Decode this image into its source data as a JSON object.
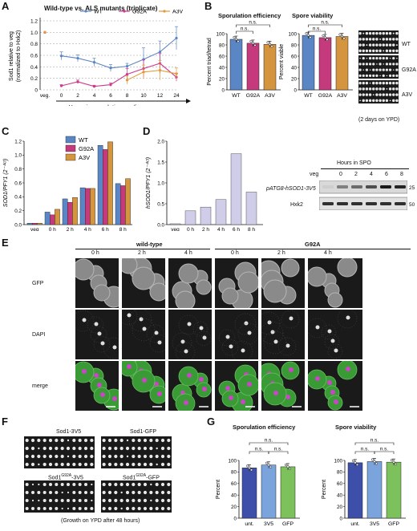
{
  "panelA": {
    "letter": "A",
    "title": "Wild-type vs. ALS mutants (triplicate)",
    "ylabel_line1": "Sod1 relative to veg",
    "ylabel_line2": "(normalized to Hxk2)",
    "xlabel": "Hours in sporulation media",
    "xticks": [
      "veg.",
      "0",
      "2",
      "4",
      "6",
      "8",
      "10",
      "12",
      "24"
    ],
    "yticks": [
      "0",
      "0.2",
      "0.4",
      "0.6",
      "0.8",
      "1.0",
      "1.2"
    ],
    "chart_data": {
      "type": "line",
      "x": [
        "veg.",
        "0",
        "2",
        "4",
        "6",
        "8",
        "10",
        "12",
        "24"
      ],
      "ylim": [
        0,
        1.2
      ],
      "series": [
        {
          "name": "WT",
          "color": "#5b86c5",
          "values": [
            1.0,
            0.59,
            0.55,
            0.48,
            0.38,
            0.41,
            0.53,
            0.66,
            0.9
          ],
          "err": [
            0,
            0.07,
            0.06,
            0.07,
            0.06,
            0.05,
            0.2,
            0.19,
            0.2
          ]
        },
        {
          "name": "G92A",
          "color": "#d0378c",
          "values": [
            1.0,
            0.07,
            0.14,
            0.06,
            0.09,
            0.27,
            0.37,
            0.46,
            0.22
          ],
          "err": [
            0,
            0.02,
            0.03,
            0.02,
            0.03,
            0.1,
            0.15,
            0.17,
            0.07
          ]
        },
        {
          "name": "A3V",
          "color": "#e39a36",
          "values": [
            1.0,
            null,
            null,
            null,
            null,
            0.17,
            0.31,
            0.34,
            0.28
          ],
          "err": [
            0,
            0,
            0,
            0,
            0,
            0.07,
            0.12,
            0.17,
            0.1
          ]
        }
      ]
    }
  },
  "panelB": {
    "letter": "B",
    "spor_title": "Sporulation efficiency",
    "spor_ylabel": "Percent triad/tetrad",
    "via_title": "Spore viability",
    "via_ylabel": "Percent viable",
    "ns": "n.s.",
    "yticks": [
      "0",
      "20",
      "40",
      "60",
      "80",
      "100"
    ],
    "chart_data": [
      {
        "type": "bar",
        "title": "Sporulation efficiency",
        "ylabel": "Percent triad/tetrad",
        "categories": [
          "WT",
          "G92A",
          "A3V"
        ],
        "values": [
          90,
          83,
          81
        ],
        "ylim": [
          0,
          100
        ]
      },
      {
        "type": "bar",
        "title": "Spore viability",
        "ylabel": "Percent viable",
        "categories": [
          "WT",
          "G92A",
          "A3V"
        ],
        "values": [
          97,
          93,
          95
        ],
        "ylim": [
          0,
          100
        ]
      }
    ],
    "bar_colors": [
      "#5b86c5",
      "#c43a7c",
      "#d4953e"
    ],
    "plate_labels": [
      "WT",
      "G92A",
      "A3V"
    ],
    "plate_caption": "(2 days on YPD)"
  },
  "panelC": {
    "letter": "C",
    "ylabel": "SOD1/PFY1 (2⁻ᐞᶜᵗ)",
    "xticks": [
      "veg",
      "0 h",
      "2 h",
      "4 h",
      "6 h",
      "8 h"
    ],
    "yticks": [
      "0.0",
      "0.2",
      "0.4",
      "0.6",
      "0.8",
      "1.0",
      "1.2"
    ],
    "legend": [
      "WT",
      "G92A",
      "A3V"
    ],
    "colors": [
      "#5b86c5",
      "#c43a7c",
      "#d4953e"
    ],
    "chart_data": {
      "type": "bar",
      "categories": [
        "veg",
        "0 h",
        "2 h",
        "4 h",
        "6 h",
        "8 h"
      ],
      "ylim": [
        0,
        1.2
      ],
      "series": [
        {
          "name": "WT",
          "values": [
            0.02,
            0.18,
            0.37,
            0.53,
            1.14,
            0.59
          ]
        },
        {
          "name": "G92A",
          "values": [
            0.02,
            0.14,
            0.32,
            0.52,
            1.08,
            0.56
          ]
        },
        {
          "name": "A3V",
          "values": [
            0.02,
            0.22,
            0.39,
            0.52,
            1.19,
            0.66
          ]
        }
      ]
    }
  },
  "panelD": {
    "letter": "D",
    "ylabel": "hSOD1/PFY1 (2⁻ᐞᶜᵗ)",
    "xticks": [
      "veg",
      "0 h",
      "2 h",
      "4 h",
      "6 h",
      "8 h"
    ],
    "yticks": [
      "0.0",
      "0.5",
      "1.0",
      "1.5",
      "2.0"
    ],
    "color": "#cfcde8",
    "chart_data": {
      "type": "bar",
      "categories": [
        "veg",
        "0 h",
        "2 h",
        "4 h",
        "6 h",
        "8 h"
      ],
      "values": [
        0.02,
        0.33,
        0.42,
        0.6,
        1.7,
        0.78
      ],
      "ylim": [
        0,
        2.0
      ]
    },
    "blot_header": "Hours in SPO",
    "blot_cols": [
      "veg",
      "0",
      "2",
      "4",
      "6",
      "8"
    ],
    "blot_rows": [
      "pATG8-hSOD1-3V5",
      "Hxk2"
    ],
    "blot_markers": [
      "25",
      "50"
    ]
  },
  "panelE": {
    "letter": "E",
    "groups": [
      "wild-type",
      "G92A"
    ],
    "times": [
      "0 h",
      "2 h",
      "4 h",
      "0 h",
      "2 h",
      "4 h"
    ],
    "rows": [
      "GFP",
      "DAPI",
      "merge"
    ]
  },
  "panelF": {
    "letter": "F",
    "strains": [
      "Sod1-3V5",
      "Sod1-GFP",
      "Sod1",
      "Sod1"
    ],
    "strain_sup": [
      "",
      "",
      "G92A",
      "G92A"
    ],
    "strain_suffix": [
      "",
      "",
      "-3V5",
      "-GFP"
    ],
    "caption": "(Growth on YPD after 48 hours)"
  },
  "panelG": {
    "letter": "G",
    "spor_title": "Sporulation efficiency",
    "via_title": "Spore viability",
    "ylabel": "Percent",
    "ns": "n.s.",
    "yticks": [
      "0",
      "20",
      "40",
      "60",
      "80",
      "100"
    ],
    "bar_colors": [
      "#3d4fa8",
      "#7ba3dc",
      "#7dc15c"
    ],
    "chart_data": [
      {
        "type": "bar",
        "title": "Sporulation efficiency",
        "ylabel": "Percent",
        "categories": [
          "unt.",
          "3V5",
          "GFP"
        ],
        "values": [
          87,
          92,
          89
        ],
        "ylim": [
          0,
          100
        ]
      },
      {
        "type": "bar",
        "title": "Spore viability",
        "ylabel": "Percent",
        "categories": [
          "unt.",
          "3V5",
          "GFP"
        ],
        "values": [
          96,
          98,
          97
        ],
        "ylim": [
          0,
          100
        ]
      }
    ]
  }
}
